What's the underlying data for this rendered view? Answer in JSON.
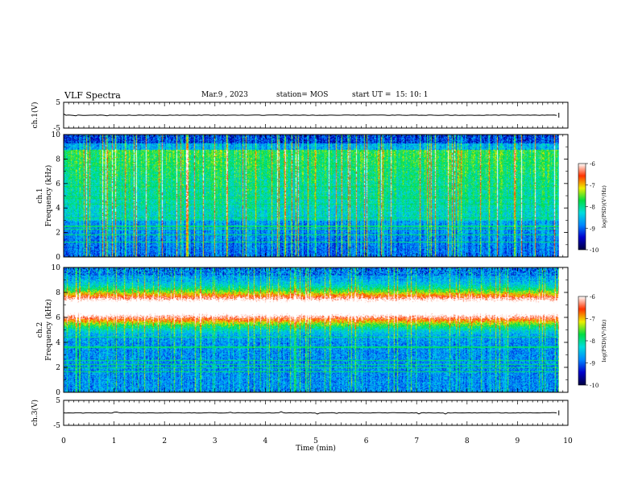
{
  "header": {
    "title": "VLF Spectra",
    "date": "Mar.9 , 2023",
    "station": "station= MOS",
    "start_ut": "start UT =  15: 10: 1"
  },
  "chart_data": [
    {
      "type": "line",
      "panel": "ch1-waveform",
      "ylabel": "ch.1(V)",
      "ylim": [
        -5,
        5
      ],
      "yticks": [
        "5",
        "-5"
      ],
      "value": 0
    },
    {
      "type": "heatmap",
      "panel": "ch1-spectrogram",
      "ylabel": "ch.1  Frequency (kHz)",
      "ylim": [
        0,
        10
      ],
      "yticks": [
        "0",
        "2",
        "4",
        "6",
        "8",
        "10"
      ],
      "colorbar": {
        "label": "log(PSD)(V²/Hz)",
        "ticks": [
          "-6",
          "-7",
          "-8",
          "-9",
          "-10"
        ],
        "range": [
          -10,
          -6
        ]
      }
    },
    {
      "type": "heatmap",
      "panel": "ch2-spectrogram",
      "ylabel": "ch.2  Frequency (kHz)",
      "ylim": [
        0,
        10
      ],
      "yticks": [
        "0",
        "2",
        "4",
        "6",
        "8",
        "10"
      ],
      "colorbar": {
        "label": "log(PSD)(V²/Hz)",
        "ticks": [
          "-6",
          "-7",
          "-8",
          "-9",
          "-10"
        ],
        "range": [
          -10,
          -6
        ]
      }
    },
    {
      "type": "line",
      "panel": "ch3-waveform",
      "ylabel": "ch.3(V)",
      "ylim": [
        -5,
        5
      ],
      "yticks": [
        "5",
        "-5"
      ],
      "value": 0
    }
  ],
  "xaxis": {
    "label": "Time (min)",
    "ticks": [
      "0",
      "1",
      "2",
      "3",
      "4",
      "5",
      "6",
      "7",
      "8",
      "9",
      "10"
    ],
    "xlim": [
      0,
      10
    ],
    "data_end": 9.82
  },
  "colors": {
    "colormap": [
      "#000040",
      "#0000cc",
      "#0088ff",
      "#00dddd",
      "#00dd44",
      "#eeee00",
      "#ff3300",
      "#ffffff"
    ],
    "axis": "#000000"
  }
}
